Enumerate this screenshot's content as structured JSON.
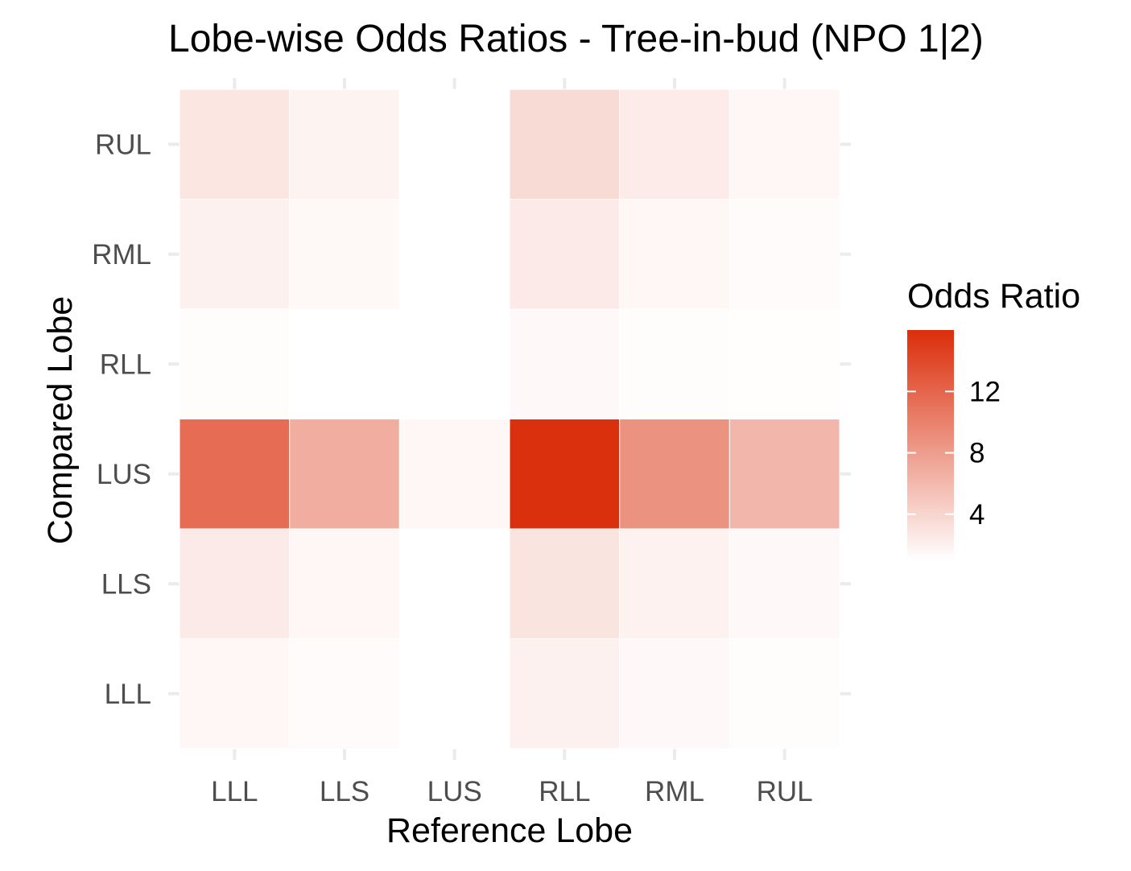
{
  "chart_data": {
    "type": "heatmap",
    "title": "Lobe-wise Odds Ratios - Tree-in-bud (NPO 1|2)",
    "xlabel": "Reference Lobe",
    "ylabel": "Compared Lobe",
    "x_categories": [
      "LLL",
      "LLS",
      "LUS",
      "RLL",
      "RML",
      "RUL"
    ],
    "y_categories": [
      "LLL",
      "LLS",
      "LUS",
      "RLL",
      "RML",
      "RUL"
    ],
    "values": [
      [
        1.6,
        1.3,
        1.0,
        2.0,
        1.4,
        1.2
      ],
      [
        2.5,
        1.6,
        1.0,
        2.9,
        1.9,
        1.4
      ],
      [
        11.5,
        6.8,
        1.6,
        15.8,
        8.8,
        6.2
      ],
      [
        1.2,
        1.0,
        0.8,
        1.4,
        1.2,
        1.1
      ],
      [
        2.0,
        1.5,
        1.0,
        2.5,
        1.6,
        1.3
      ],
      [
        2.8,
        1.8,
        1.0,
        3.6,
        2.4,
        1.6
      ]
    ],
    "color_low": "#ffffff",
    "color_high": "#db2d0a",
    "legend": {
      "title": "Odds Ratio",
      "ticks": [
        4,
        8,
        12
      ],
      "range": [
        1,
        16
      ],
      "placement": "right"
    },
    "grid": true
  }
}
